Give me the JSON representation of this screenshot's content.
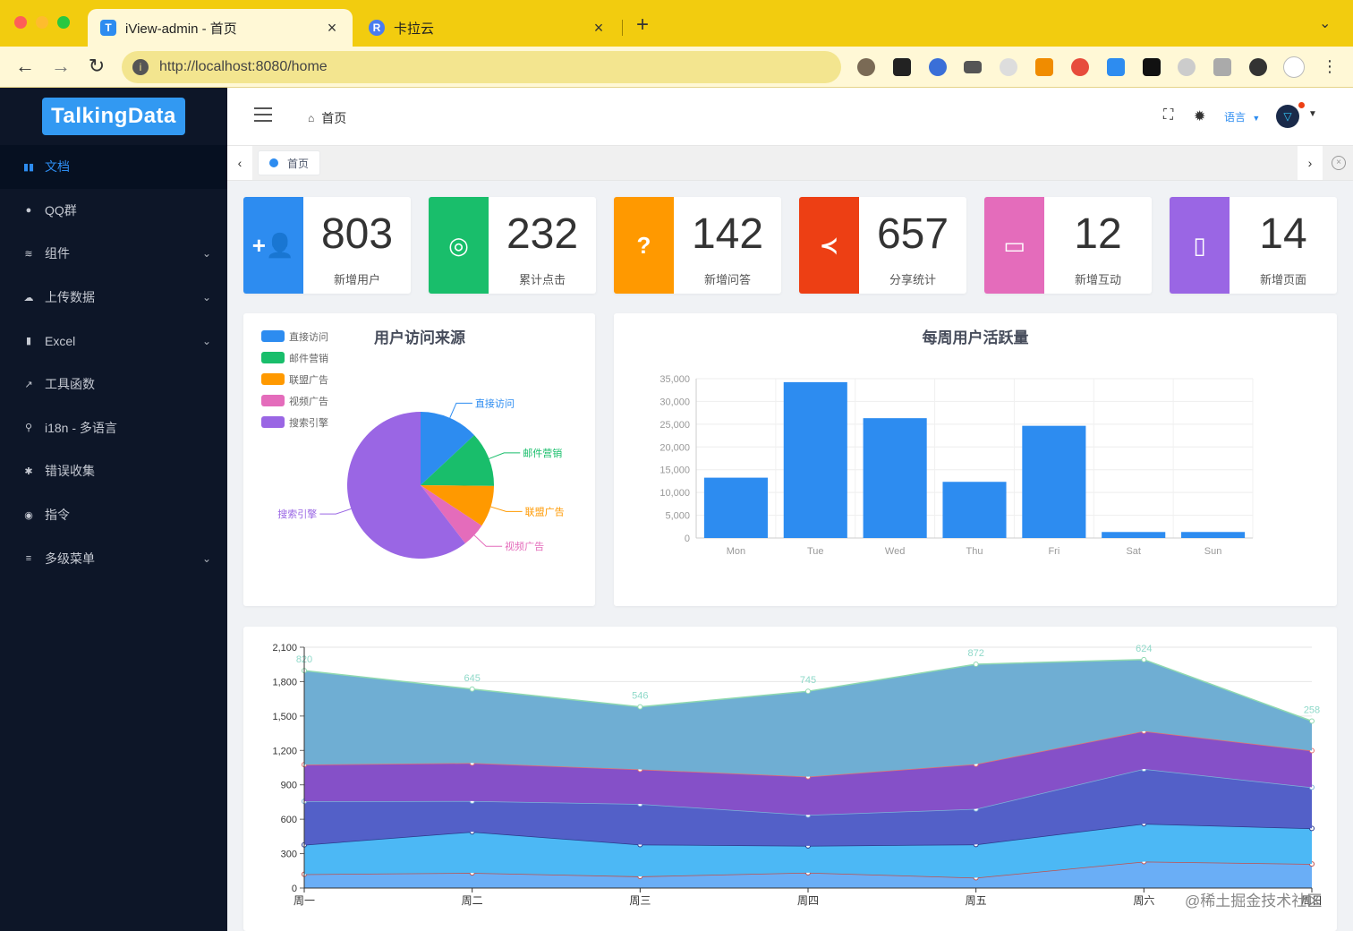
{
  "browser": {
    "tabs": [
      {
        "title": "iView-admin - 首页",
        "favicon": "T",
        "active": true
      },
      {
        "title": "卡拉云",
        "favicon": "R",
        "active": false
      }
    ],
    "new_tab_symbol": "+",
    "close_symbol": "×",
    "url": "http://localhost:8080/home"
  },
  "sidebar": {
    "logo": "TalkingData",
    "items": [
      {
        "label": "文档",
        "icon": "book-icon",
        "glyph": "▮▮",
        "active": true,
        "expandable": false
      },
      {
        "label": "QQ群",
        "icon": "qq-icon",
        "glyph": "●",
        "active": false,
        "expandable": false
      },
      {
        "label": "组件",
        "icon": "layers-icon",
        "glyph": "≋",
        "active": false,
        "expandable": true
      },
      {
        "label": "上传数据",
        "icon": "cloud-upload-icon",
        "glyph": "☁",
        "active": false,
        "expandable": true
      },
      {
        "label": "Excel",
        "icon": "bar-chart-icon",
        "glyph": "▮",
        "active": false,
        "expandable": true
      },
      {
        "label": "工具函数",
        "icon": "tool-icon",
        "glyph": "↗",
        "active": false,
        "expandable": false
      },
      {
        "label": "i18n - 多语言",
        "icon": "translate-icon",
        "glyph": "⚲",
        "active": false,
        "expandable": false
      },
      {
        "label": "错误收集",
        "icon": "bug-icon",
        "glyph": "✱",
        "active": false,
        "expandable": false
      },
      {
        "label": "指令",
        "icon": "target-icon",
        "glyph": "◉",
        "active": false,
        "expandable": false
      },
      {
        "label": "多级菜单",
        "icon": "menu-icon",
        "glyph": "≡",
        "active": false,
        "expandable": true
      }
    ]
  },
  "header": {
    "breadcrumb": "首页",
    "language": "语言"
  },
  "tagsbar": {
    "tag": "首页"
  },
  "stats": [
    {
      "count": "803",
      "label": "新增用户",
      "color": "#2d8cf0",
      "icon": "add-user-icon",
      "glyph": "+👤"
    },
    {
      "count": "232",
      "label": "累计点击",
      "color": "#19be6b",
      "icon": "locate-icon",
      "glyph": "◎"
    },
    {
      "count": "142",
      "label": "新增问答",
      "color": "#ff9900",
      "icon": "question-icon",
      "glyph": "?"
    },
    {
      "count": "657",
      "label": "分享统计",
      "color": "#ed3f14",
      "icon": "share-icon",
      "glyph": "≺"
    },
    {
      "count": "12",
      "label": "新增互动",
      "color": "#E46CBB",
      "icon": "chat-icon",
      "glyph": "▭"
    },
    {
      "count": "14",
      "label": "新增页面",
      "color": "#9A66E4",
      "icon": "map-icon",
      "glyph": "▯"
    }
  ],
  "watermark": "@稀土掘金技术社区",
  "chart_data": [
    {
      "type": "pie",
      "title": "用户访问来源",
      "legend": "top-left",
      "categories": [
        "直接访问",
        "邮件营销",
        "联盟广告",
        "视频广告",
        "搜索引擎"
      ],
      "values": [
        335,
        310,
        234,
        135,
        1548
      ],
      "colors": [
        "#2d8cf0",
        "#19be6b",
        "#ff9900",
        "#E46CBB",
        "#9A66E4"
      ]
    },
    {
      "type": "bar",
      "title": "每周用户活跃量",
      "categories": [
        "Mon",
        "Tue",
        "Wed",
        "Thu",
        "Fri",
        "Sat",
        "Sun"
      ],
      "values": [
        13253,
        34235,
        26321,
        12340,
        24643,
        1322,
        1324
      ],
      "ylim": [
        0,
        35000
      ],
      "yticks": [
        "0",
        "5,000",
        "10,000",
        "15,000",
        "20,000",
        "25,000",
        "30,000",
        "35,000"
      ],
      "grid": true,
      "color": "#2d8cf0"
    },
    {
      "type": "area",
      "stacked": true,
      "categories": [
        "周一",
        "周二",
        "周三",
        "周四",
        "周五",
        "周六",
        "周日"
      ],
      "ylim": [
        0,
        2100
      ],
      "yticks": [
        "0",
        "300",
        "600",
        "900",
        "1,200",
        "1,500",
        "1,800",
        "2,100"
      ],
      "series": [
        {
          "values": [
            120,
            132,
            101,
            134,
            90,
            230,
            210
          ],
          "color": "#6AAEF6",
          "line": "#c0504d"
        },
        {
          "values": [
            257,
            358,
            278,
            234,
            290,
            330,
            310
          ],
          "color": "#4CB8F5",
          "line": "#2b3a8c"
        },
        {
          "values": [
            379,
            268,
            354,
            269,
            310,
            478,
            358
          ],
          "color": "#5360C8",
          "line": "#7db3d8"
        },
        {
          "values": [
            320,
            332,
            301,
            334,
            390,
            330,
            320
          ],
          "color": "#8550C8",
          "line": "#e37070"
        },
        {
          "values": [
            820,
            645,
            546,
            745,
            872,
            624,
            258
          ],
          "color": "#6FAED3",
          "line": "#8fd9b0"
        }
      ],
      "top_labels": [
        "820",
        "645",
        "546",
        "745",
        "872",
        "624",
        "258"
      ]
    }
  ]
}
